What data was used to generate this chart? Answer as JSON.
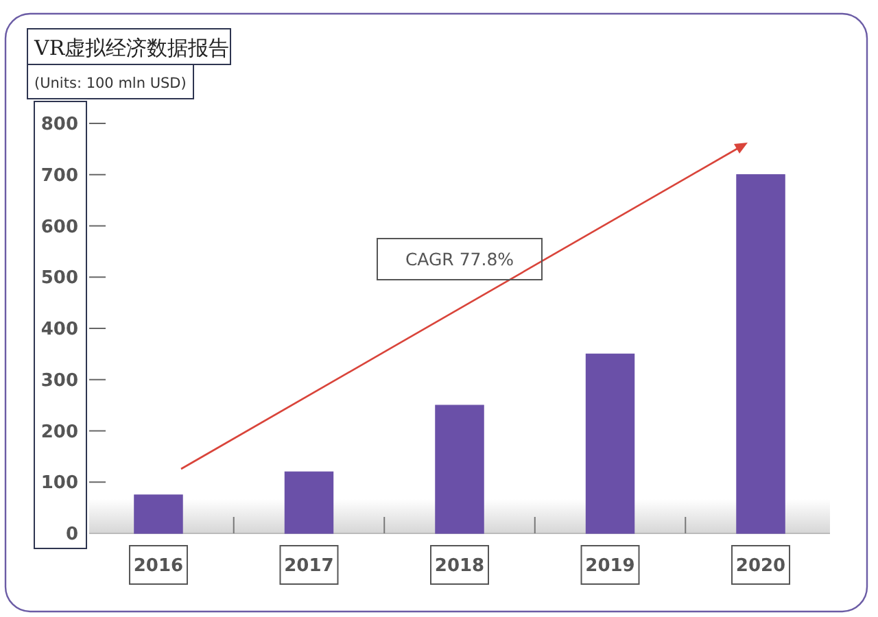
{
  "chart_data": {
    "type": "bar",
    "title": "VR虚拟经济数据报告",
    "subtitle": "(Units: 100 mln USD)",
    "categories": [
      "2016",
      "2017",
      "2018",
      "2019",
      "2020"
    ],
    "values": [
      75,
      120,
      250,
      350,
      700
    ],
    "color": "#6a50a8",
    "ylim": [
      0,
      800
    ],
    "yticks": [
      0,
      100,
      200,
      300,
      400,
      500,
      600,
      700,
      800
    ],
    "annotations": [
      "CAGR 77.8%"
    ]
  }
}
